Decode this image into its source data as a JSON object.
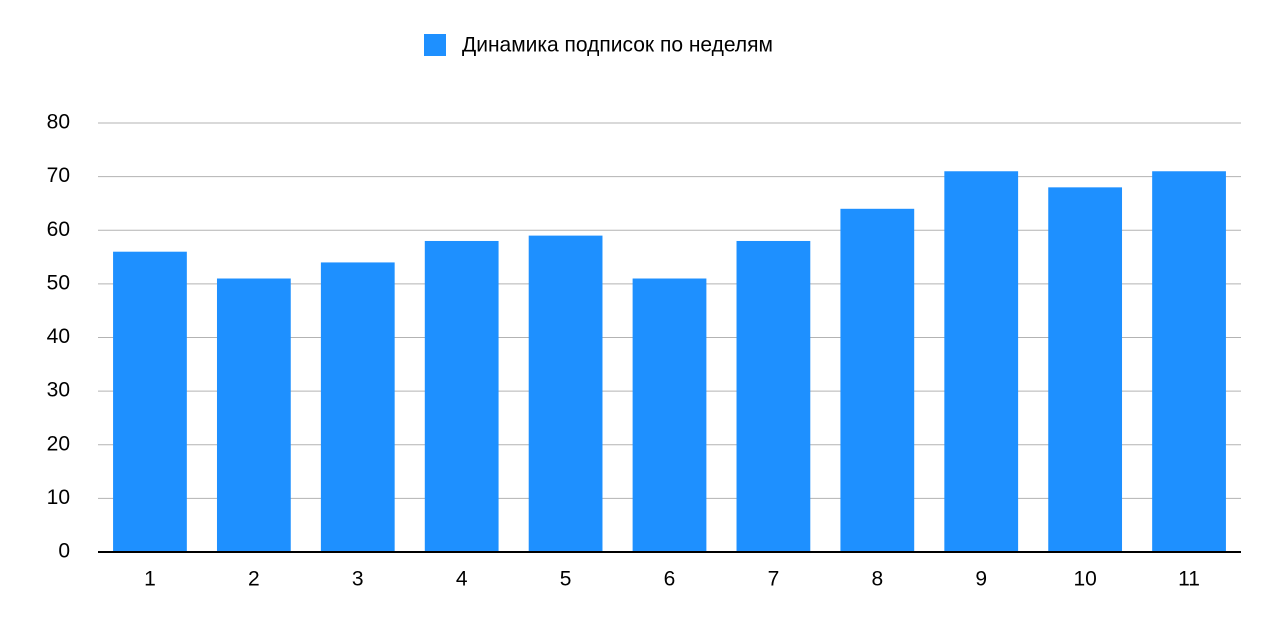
{
  "chart_data": {
    "type": "bar",
    "categories": [
      "1",
      "2",
      "3",
      "4",
      "5",
      "6",
      "7",
      "8",
      "9",
      "10",
      "11"
    ],
    "series": [
      {
        "name": "Динамика подписок по неделям",
        "color": "#1e90ff",
        "values": [
          56,
          51,
          54,
          58,
          59,
          51,
          58,
          64,
          71,
          68,
          71
        ]
      }
    ],
    "ylim": [
      0,
      80
    ],
    "yticks": [
      0,
      10,
      20,
      30,
      40,
      50,
      60,
      70,
      80
    ],
    "grid": true,
    "legend": "top"
  }
}
